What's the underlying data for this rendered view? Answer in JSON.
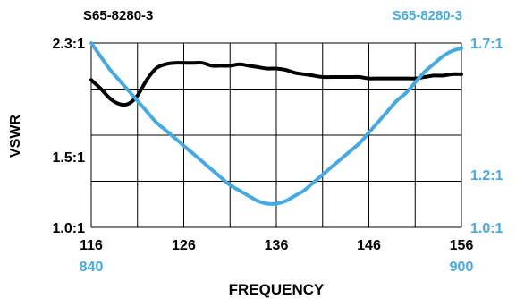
{
  "chart_data": {
    "type": "line",
    "xlabel": "FREQUENCY",
    "ylabel": "VSWR",
    "x_primary": {
      "range": [
        116,
        156
      ],
      "ticks": [
        "116",
        "126",
        "136",
        "146",
        "156"
      ]
    },
    "x_secondary": {
      "range": [
        840,
        900
      ],
      "ticks": [
        "840",
        "900"
      ]
    },
    "y_left": {
      "range": [
        1.0,
        2.3
      ],
      "ticks": [
        {
          "value": 1.0,
          "label": "1.0:1"
        },
        {
          "value": 1.5,
          "label": "1.5:1"
        },
        {
          "value": 2.3,
          "label": "2.3:1"
        }
      ]
    },
    "y_right": {
      "range": [
        1.0,
        1.7
      ],
      "ticks": [
        {
          "value": 1.0,
          "label": "1.0:1"
        },
        {
          "value": 1.2,
          "label": "1.2:1"
        },
        {
          "value": 1.7,
          "label": "1.7:1"
        }
      ]
    },
    "grid": true,
    "series": [
      {
        "name": "S65-8280-3",
        "color": "#000000",
        "x_axis": "primary",
        "y_axis": "left",
        "x": [
          116,
          117,
          118,
          119,
          120,
          121,
          122,
          123,
          124,
          125,
          126,
          127,
          128,
          129,
          130,
          131,
          132,
          133,
          134,
          135,
          136,
          137,
          138,
          139,
          140,
          141,
          142,
          143,
          144,
          145,
          146,
          147,
          148,
          149,
          150,
          151,
          152,
          153,
          154,
          155,
          156
        ],
        "values": [
          2.04,
          1.98,
          1.91,
          1.87,
          1.87,
          1.93,
          2.04,
          2.12,
          2.15,
          2.16,
          2.16,
          2.16,
          2.16,
          2.14,
          2.14,
          2.14,
          2.15,
          2.14,
          2.13,
          2.12,
          2.12,
          2.11,
          2.09,
          2.08,
          2.07,
          2.06,
          2.06,
          2.06,
          2.06,
          2.06,
          2.05,
          2.05,
          2.05,
          2.05,
          2.05,
          2.05,
          2.06,
          2.07,
          2.07,
          2.08,
          2.08
        ]
      },
      {
        "name": "S65-8280-3",
        "color": "#44aae4",
        "x_axis": "secondary",
        "y_axis": "right",
        "x": [
          840,
          841.5,
          843,
          844.5,
          846,
          847.5,
          849,
          850.5,
          852,
          853.5,
          855,
          856.5,
          858,
          859.5,
          861,
          862.5,
          864,
          865.5,
          867,
          868.5,
          870,
          871.5,
          873,
          874.5,
          876,
          877.5,
          879,
          880.5,
          882,
          883.5,
          885,
          886.5,
          888,
          889.5,
          891,
          892.5,
          894,
          895.5,
          897,
          898.5,
          900
        ],
        "values": [
          1.7,
          1.65,
          1.6,
          1.56,
          1.52,
          1.48,
          1.44,
          1.4,
          1.37,
          1.34,
          1.31,
          1.28,
          1.25,
          1.22,
          1.19,
          1.16,
          1.14,
          1.12,
          1.1,
          1.09,
          1.09,
          1.1,
          1.12,
          1.14,
          1.17,
          1.2,
          1.23,
          1.26,
          1.29,
          1.32,
          1.36,
          1.4,
          1.44,
          1.48,
          1.51,
          1.55,
          1.59,
          1.62,
          1.65,
          1.67,
          1.68
        ]
      }
    ]
  }
}
